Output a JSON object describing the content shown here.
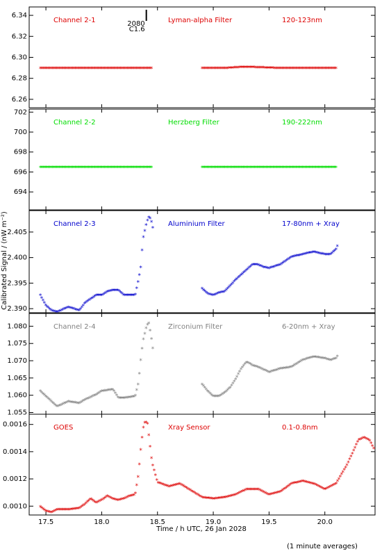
{
  "figure": {
    "ylabel": "Calibrated Signal / (nW m⁻²)",
    "xlabel": "Time / h UTC, 26 Jan 2028",
    "footnote": "(1 minute averages)",
    "gap_marker": {
      "x": 18.4,
      "labels": [
        "2080",
        "C1.6"
      ]
    }
  },
  "chart_data": [
    {
      "type": "scatter",
      "channel": "Channel 2-1",
      "filter": "Lyman-alpha Filter",
      "band": "120-123nm",
      "color": "#dd0000",
      "ylim": [
        6.252,
        6.348
      ],
      "yticks": [
        "6.26",
        "6.28",
        "6.30",
        "6.32",
        "6.34"
      ],
      "series": [
        {
          "x": [
            17.45,
            17.6,
            17.8,
            18.0,
            18.2,
            18.45
          ],
          "y": [
            6.289,
            6.289,
            6.289,
            6.289,
            6.289,
            6.289
          ]
        },
        {
          "x": [
            18.9,
            19.1,
            19.25,
            19.35,
            19.6,
            19.8,
            20.0,
            20.1
          ],
          "y": [
            6.289,
            6.289,
            6.29,
            6.29,
            6.289,
            6.289,
            6.289,
            6.289
          ]
        }
      ]
    },
    {
      "type": "scatter",
      "channel": "Channel 2-2",
      "filter": "Herzberg Filter",
      "band": "190-222nm",
      "color": "#00dd00",
      "ylim": [
        692.2,
        702.3
      ],
      "yticks": [
        "694",
        "696",
        "698",
        "700",
        "702"
      ],
      "series": [
        {
          "x": [
            17.45,
            17.8,
            18.1,
            18.45
          ],
          "y": [
            696.4,
            696.4,
            696.4,
            696.4
          ]
        },
        {
          "x": [
            18.9,
            19.3,
            19.7,
            20.1
          ],
          "y": [
            696.4,
            696.4,
            696.4,
            696.4
          ]
        }
      ]
    },
    {
      "type": "scatter",
      "channel": "Channel 2-3",
      "filter": "Aluminium Filter",
      "band": "17-80nm + Xray",
      "color": "#0000cc",
      "ylim": [
        2.3892,
        2.4092
      ],
      "yticks": [
        "2.390",
        "2.395",
        "2.400",
        "2.405"
      ],
      "series": [
        {
          "x": [
            17.45,
            17.5,
            17.55,
            17.6,
            17.7,
            17.8,
            17.85,
            17.95,
            18.0,
            18.05,
            18.1,
            18.15,
            18.2,
            18.25,
            18.3,
            18.33,
            18.35,
            18.37,
            18.4,
            18.42,
            18.44,
            18.46
          ],
          "y": [
            2.3925,
            2.3905,
            2.3895,
            2.3892,
            2.3902,
            2.3895,
            2.391,
            2.3925,
            2.3925,
            2.3932,
            2.3935,
            2.3935,
            2.3925,
            2.3925,
            2.3925,
            2.3955,
            2.398,
            2.4035,
            2.4065,
            2.4078,
            2.4075,
            2.4055
          ]
        },
        {
          "x": [
            18.9,
            18.95,
            19.0,
            19.05,
            19.1,
            19.2,
            19.3,
            19.35,
            19.4,
            19.45,
            19.5,
            19.6,
            19.7,
            19.8,
            19.9,
            20.0,
            20.05,
            20.1,
            20.12
          ],
          "y": [
            2.3938,
            2.3928,
            2.3925,
            2.393,
            2.3932,
            2.3955,
            2.3975,
            2.3985,
            2.3985,
            2.398,
            2.3978,
            2.3985,
            2.4,
            2.4005,
            2.401,
            2.4005,
            2.4005,
            2.4015,
            2.4025
          ]
        }
      ]
    },
    {
      "type": "scatter",
      "channel": "Channel 2-4",
      "filter": "Zirconium Filter",
      "band": "6-20nm + Xray",
      "color": "#808080",
      "ylim": [
        1.0545,
        1.0837
      ],
      "yticks": [
        "1.055",
        "1.060",
        "1.065",
        "1.070",
        "1.075",
        "1.080"
      ],
      "series": [
        {
          "x": [
            17.45,
            17.55,
            17.6,
            17.7,
            17.8,
            17.85,
            17.95,
            18.0,
            18.1,
            18.15,
            18.2,
            18.3,
            18.33,
            18.35,
            18.37,
            18.4,
            18.42,
            18.44,
            18.46
          ],
          "y": [
            1.061,
            1.058,
            1.0565,
            1.058,
            1.0575,
            1.0585,
            1.06,
            1.061,
            1.0615,
            1.059,
            1.059,
            1.0595,
            1.0635,
            1.07,
            1.0755,
            1.0795,
            1.081,
            1.0775,
            1.073
          ]
        },
        {
          "x": [
            18.9,
            18.95,
            19.0,
            19.05,
            19.1,
            19.15,
            19.2,
            19.25,
            19.3,
            19.35,
            19.4,
            19.5,
            19.6,
            19.7,
            19.8,
            19.9,
            20.0,
            20.05,
            20.1,
            20.12
          ],
          "y": [
            1.063,
            1.061,
            1.0595,
            1.0595,
            1.0605,
            1.062,
            1.0645,
            1.0675,
            1.0695,
            1.0685,
            1.068,
            1.0665,
            1.0675,
            1.068,
            1.07,
            1.071,
            1.0705,
            1.07,
            1.0705,
            1.0715
          ]
        }
      ]
    },
    {
      "type": "scatter",
      "channel": "GOES",
      "filter": "Xray Sensor",
      "band": "0.1-0.8nm",
      "color": "#dd0000",
      "ylim": [
        0.000935,
        0.001675
      ],
      "yticks": [
        "0.0010",
        "0.0012",
        "0.0014",
        "0.0016"
      ],
      "series": [
        {
          "x": [
            17.45,
            17.5,
            17.55,
            17.6,
            17.7,
            17.8,
            17.85,
            17.9,
            17.95,
            18.0,
            18.05,
            18.1,
            18.15,
            18.2,
            18.25,
            18.3,
            18.33,
            18.35,
            18.37,
            18.39,
            18.41,
            18.43,
            18.45,
            18.5,
            18.6,
            18.7,
            18.8,
            18.9,
            19.0,
            19.1,
            19.2,
            19.3,
            19.4,
            19.5,
            19.6,
            19.7,
            19.8,
            19.9,
            20.0,
            20.1,
            20.2,
            20.3,
            20.35,
            20.4,
            20.45
          ],
          "y": [
            0.00099,
            0.00096,
            0.00095,
            0.00097,
            0.00097,
            0.00098,
            0.00101,
            0.00105,
            0.00102,
            0.00104,
            0.00107,
            0.00105,
            0.00104,
            0.00105,
            0.00107,
            0.00108,
            0.00123,
            0.00141,
            0.00156,
            0.00162,
            0.0016,
            0.00146,
            0.00132,
            0.00117,
            0.00114,
            0.00116,
            0.00111,
            0.00106,
            0.00105,
            0.00106,
            0.00108,
            0.00112,
            0.00112,
            0.00108,
            0.0011,
            0.00116,
            0.00118,
            0.00116,
            0.00112,
            0.00116,
            0.0013,
            0.00148,
            0.0015,
            0.00148,
            0.0014
          ]
        }
      ]
    }
  ],
  "xaxis": {
    "xlim": [
      17.35,
      20.45
    ],
    "ticks": [
      "17.5",
      "18.0",
      "18.5",
      "19.0",
      "19.5",
      "20.0"
    ]
  }
}
